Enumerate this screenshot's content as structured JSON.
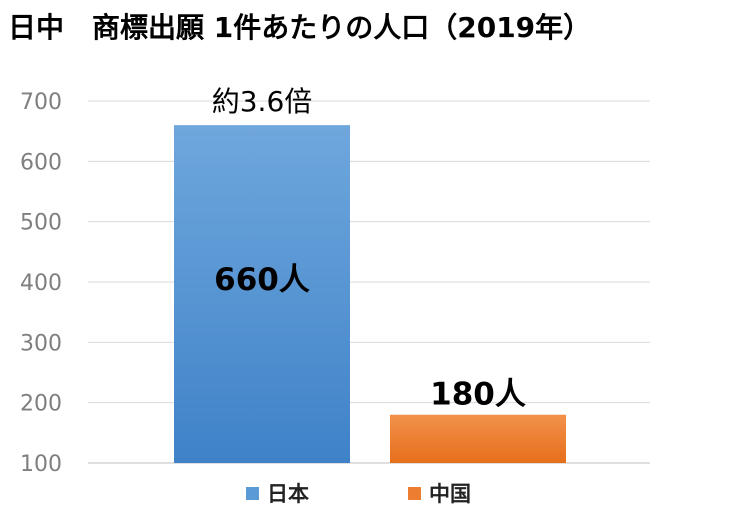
{
  "chart_data": {
    "type": "bar",
    "title": "日中　商標出願 1件あたりの人口（2019年）",
    "categories": [
      "日本",
      "中国"
    ],
    "values": [
      660,
      180
    ],
    "value_labels": [
      "660人",
      "180人"
    ],
    "annotation": "約3.6倍",
    "ylim": [
      100,
      700
    ],
    "yticks": [
      100,
      200,
      300,
      400,
      500,
      600,
      700
    ],
    "grid": true,
    "legend": "bottom",
    "colors": [
      "#5b9bd5",
      "#ed7d31"
    ],
    "xlabel": "",
    "ylabel": ""
  }
}
